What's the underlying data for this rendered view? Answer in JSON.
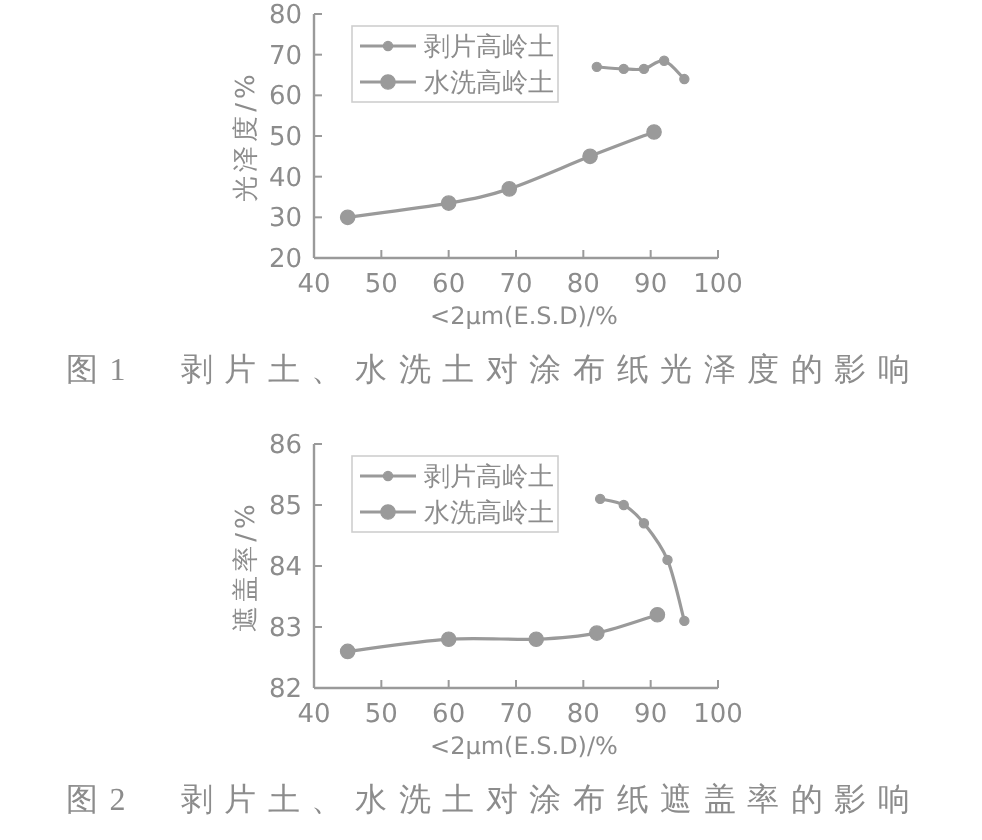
{
  "chart_data": [
    {
      "type": "line",
      "title": "图1　剥片土、水洗土对涂布纸光泽度的影响",
      "xlabel": "<2μm(E.S.D)/%",
      "ylabel": "光泽度/%",
      "xlim": [
        40,
        100
      ],
      "ylim": [
        20,
        80
      ],
      "xticks": [
        40,
        50,
        60,
        70,
        80,
        90,
        100
      ],
      "yticks": [
        20,
        30,
        40,
        50,
        60,
        70,
        80
      ],
      "legend": "top left",
      "marker": "circle",
      "series": [
        {
          "name": "剥片高岭土",
          "color": "#9a9a9a",
          "x": [
            82,
            86,
            89,
            92,
            95
          ],
          "values": [
            67,
            66.5,
            66.5,
            68.5,
            64
          ]
        },
        {
          "name": "水洗高岭土",
          "color": "#9a9a9a",
          "x": [
            45,
            60,
            69,
            81,
            90.5
          ],
          "values": [
            30,
            33.5,
            37,
            45,
            51
          ]
        }
      ]
    },
    {
      "type": "line",
      "title": "图2　剥片土、水洗土对涂布纸遮盖率的影响",
      "xlabel": "<2μm(E.S.D)/%",
      "ylabel": "遮盖率/%",
      "xlim": [
        40,
        100
      ],
      "ylim": [
        82,
        86
      ],
      "xticks": [
        40,
        50,
        60,
        70,
        80,
        90,
        100
      ],
      "yticks": [
        82,
        83,
        84,
        85,
        86
      ],
      "legend": "top left",
      "marker": "circle",
      "series": [
        {
          "name": "剥片高岭土",
          "color": "#9a9a9a",
          "x": [
            82.5,
            86,
            89,
            92.5,
            95
          ],
          "values": [
            85.1,
            85,
            84.7,
            84.1,
            83.1
          ]
        },
        {
          "name": "水洗高岭土",
          "color": "#9a9a9a",
          "x": [
            45,
            60,
            73,
            82,
            91
          ],
          "values": [
            82.6,
            82.8,
            82.8,
            82.9,
            83.2
          ]
        }
      ]
    }
  ]
}
